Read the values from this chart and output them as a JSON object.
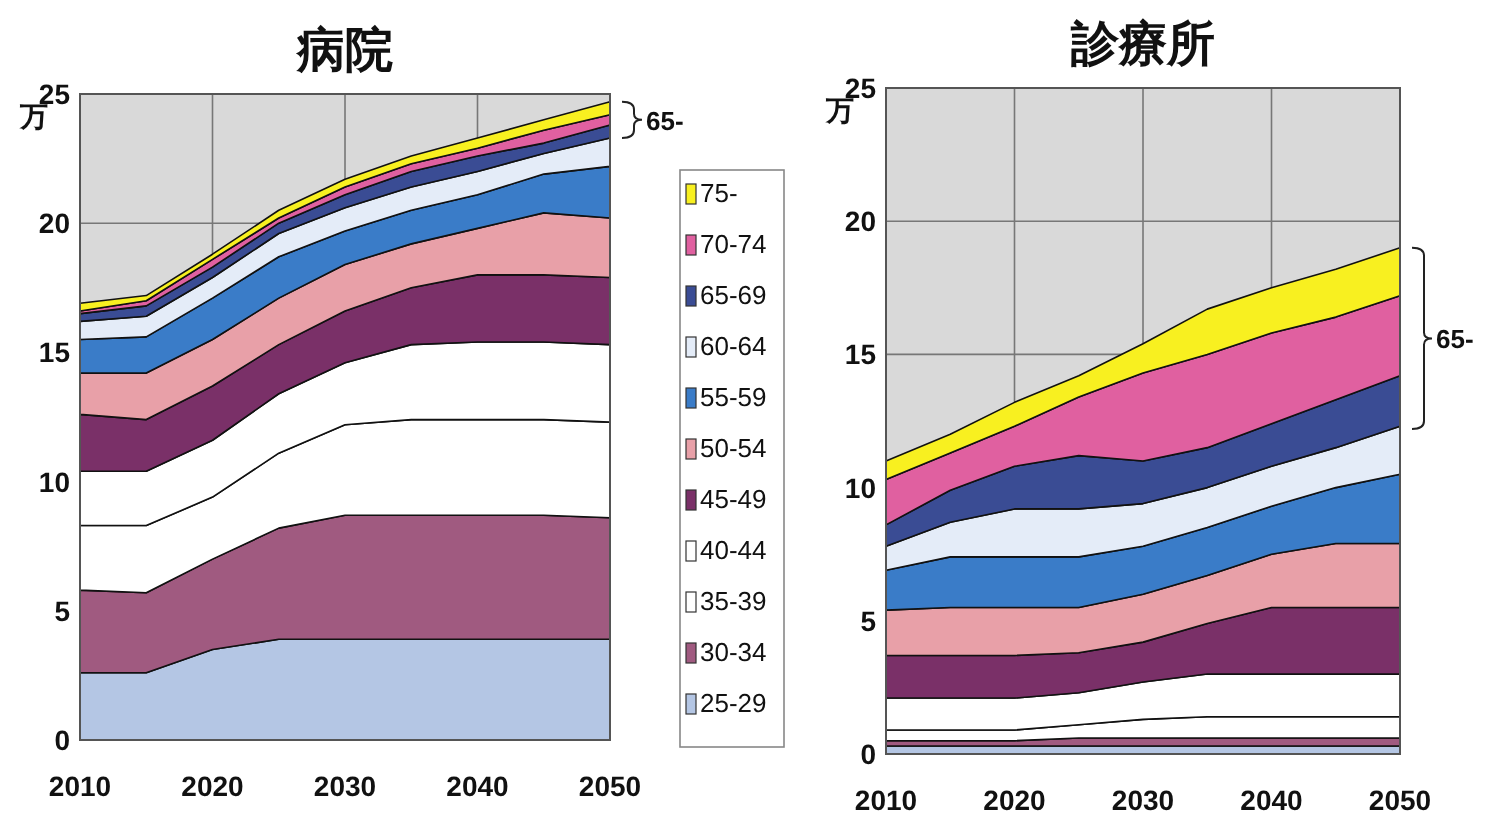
{
  "chart_data": [
    {
      "type": "area",
      "title": "病院",
      "ylabel": "万",
      "stacked": true,
      "grid": true,
      "legend": "right",
      "x": [
        2010,
        2015,
        2020,
        2025,
        2030,
        2035,
        2040,
        2045,
        2050
      ],
      "xlim": [
        2010,
        2050
      ],
      "xticks": [
        2010,
        2020,
        2030,
        2040,
        2050
      ],
      "ylim": [
        0,
        25
      ],
      "yticks": [
        0,
        5,
        10,
        15,
        20,
        25
      ],
      "annotations": [
        {
          "text": "65-",
          "x": 2050,
          "y": 24.0
        }
      ],
      "series": [
        {
          "name": "25-29",
          "color": "#b4c6e4",
          "values": [
            2.6,
            2.6,
            3.5,
            3.9,
            3.9,
            3.9,
            3.9,
            3.9,
            3.9
          ]
        },
        {
          "name": "30-34",
          "color": "#a05a80",
          "values": [
            3.2,
            3.1,
            3.5,
            4.3,
            4.8,
            4.8,
            4.8,
            4.8,
            4.7
          ]
        },
        {
          "name": "35-39",
          "color": "#ffffff",
          "values": [
            2.5,
            2.6,
            2.4,
            2.9,
            3.5,
            3.7,
            3.7,
            3.7,
            3.7
          ]
        },
        {
          "name": "40-44",
          "color": "#ffffff",
          "values": [
            2.1,
            2.1,
            2.2,
            2.3,
            2.4,
            2.9,
            3.0,
            3.0,
            3.0
          ]
        },
        {
          "name": "45-49",
          "color": "#7a3068",
          "values": [
            2.2,
            2.0,
            2.1,
            1.9,
            2.0,
            2.2,
            2.6,
            2.6,
            2.6
          ]
        },
        {
          "name": "50-54",
          "color": "#e8a0a8",
          "values": [
            1.6,
            1.8,
            1.8,
            1.8,
            1.8,
            1.7,
            1.8,
            2.4,
            2.3
          ]
        },
        {
          "name": "55-59",
          "color": "#3a7cc8",
          "values": [
            1.3,
            1.4,
            1.6,
            1.6,
            1.3,
            1.3,
            1.3,
            1.5,
            2.0
          ]
        },
        {
          "name": "60-64",
          "color": "#e4ecf8",
          "values": [
            0.7,
            0.8,
            0.8,
            0.9,
            0.9,
            0.9,
            0.9,
            0.8,
            1.1
          ]
        },
        {
          "name": "65-69",
          "color": "#3a4c94",
          "values": [
            0.3,
            0.4,
            0.4,
            0.4,
            0.5,
            0.6,
            0.6,
            0.4,
            0.5
          ]
        },
        {
          "name": "70-74",
          "color": "#e060a0",
          "values": [
            0.1,
            0.2,
            0.3,
            0.2,
            0.3,
            0.3,
            0.3,
            0.5,
            0.4
          ]
        },
        {
          "name": "75-",
          "color": "#f8f020",
          "values": [
            0.3,
            0.2,
            0.2,
            0.3,
            0.3,
            0.3,
            0.4,
            0.4,
            0.5
          ]
        }
      ]
    },
    {
      "type": "area",
      "title": "診療所",
      "ylabel": "万",
      "stacked": true,
      "grid": true,
      "x": [
        2010,
        2015,
        2020,
        2025,
        2030,
        2035,
        2040,
        2045,
        2050
      ],
      "xlim": [
        2010,
        2050
      ],
      "xticks": [
        2010,
        2020,
        2030,
        2040,
        2050
      ],
      "ylim": [
        0,
        25
      ],
      "yticks": [
        0,
        5,
        10,
        15,
        20,
        25
      ],
      "annotations": [
        {
          "text": "65-",
          "x": 2050,
          "y": 15.6
        }
      ],
      "series": [
        {
          "color": "#b4c6e4",
          "values": [
            0.3,
            0.3,
            0.3,
            0.3,
            0.3,
            0.3,
            0.3,
            0.3,
            0.3
          ]
        },
        {
          "color": "#a05a80",
          "values": [
            0.2,
            0.2,
            0.2,
            0.3,
            0.3,
            0.3,
            0.3,
            0.3,
            0.3
          ]
        },
        {
          "color": "#ffffff",
          "values": [
            0.4,
            0.4,
            0.4,
            0.5,
            0.7,
            0.8,
            0.8,
            0.8,
            0.8
          ]
        },
        {
          "color": "#ffffff",
          "values": [
            1.2,
            1.2,
            1.2,
            1.2,
            1.4,
            1.6,
            1.6,
            1.6,
            1.6
          ]
        },
        {
          "color": "#7a3068",
          "values": [
            1.6,
            1.6,
            1.6,
            1.5,
            1.5,
            1.9,
            2.5,
            2.5,
            2.5
          ]
        },
        {
          "color": "#e8a0a8",
          "values": [
            1.7,
            1.8,
            1.8,
            1.7,
            1.8,
            1.8,
            2.0,
            2.4,
            2.4
          ]
        },
        {
          "color": "#3a7cc8",
          "values": [
            1.5,
            1.9,
            1.9,
            1.9,
            1.8,
            1.8,
            1.8,
            2.1,
            2.6
          ]
        },
        {
          "color": "#e4ecf8",
          "values": [
            0.9,
            1.3,
            1.8,
            1.8,
            1.6,
            1.5,
            1.5,
            1.5,
            1.8
          ]
        },
        {
          "color": "#3a4c94",
          "values": [
            0.8,
            1.2,
            1.6,
            2.0,
            1.6,
            1.5,
            1.6,
            1.8,
            1.9
          ]
        },
        {
          "color": "#e060a0",
          "values": [
            1.7,
            1.4,
            1.5,
            2.2,
            3.3,
            3.5,
            3.4,
            3.1,
            3.0
          ]
        },
        {
          "color": "#f8f020",
          "values": [
            0.7,
            0.7,
            0.9,
            0.8,
            1.1,
            1.7,
            1.7,
            1.8,
            1.8
          ]
        }
      ]
    }
  ]
}
